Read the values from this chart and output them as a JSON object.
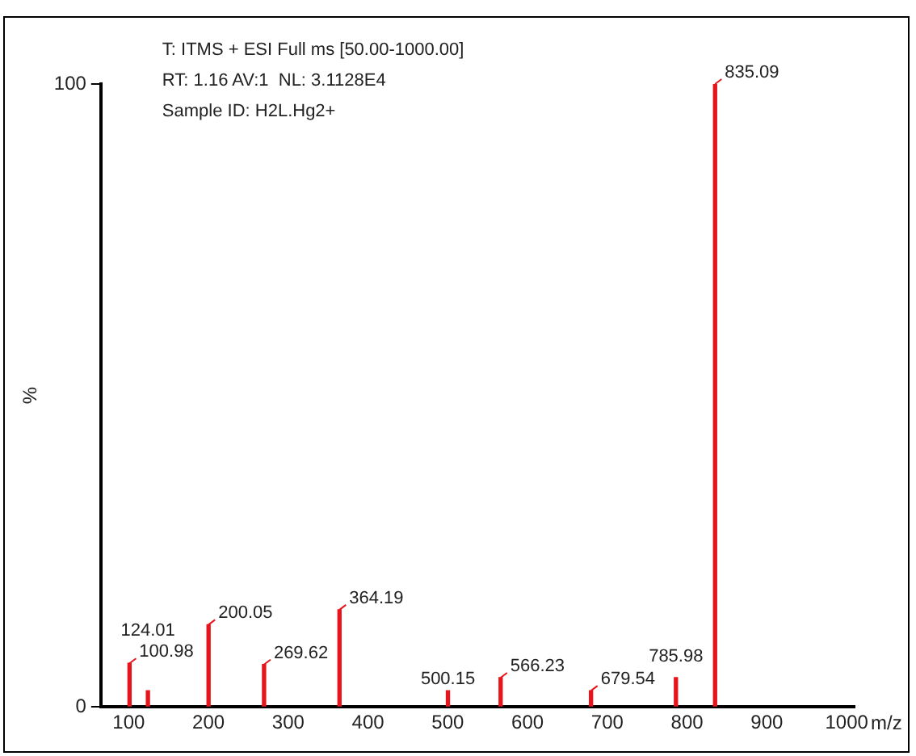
{
  "chart_data": {
    "type": "bar",
    "xlabel": "m/z",
    "ylabel": "%",
    "annotations": [
      "T: ITMS + ESI Full ms [50.00-1000.00]",
      "RT: 1.16 AV:1  NL: 3.1128E4",
      "Sample ID: H2L.Hg2+",
      {
        "text": "100.98",
        "x": 100.98,
        "y": 7
      },
      {
        "text": "124.01",
        "x": 124.01,
        "y": 2.6
      },
      {
        "text": "200.05",
        "x": 200.05,
        "y": 13.2
      },
      {
        "text": "269.62",
        "x": 269.62,
        "y": 6.8
      },
      {
        "text": "364.19",
        "x": 364.19,
        "y": 15.6
      },
      {
        "text": "500.15",
        "x": 500.15,
        "y": 2.6
      },
      {
        "text": "566.23",
        "x": 566.23,
        "y": 4.7
      },
      {
        "text": "679.54",
        "x": 679.54,
        "y": 2.6
      },
      {
        "text": "785.98",
        "x": 785.98,
        "y": 4.7
      },
      {
        "text": "835.09",
        "x": 835.09,
        "y": 100
      }
    ],
    "x": [
      100.98,
      124.01,
      200.05,
      269.62,
      364.19,
      500.15,
      566.23,
      679.54,
      785.98,
      835.09
    ],
    "values": [
      7,
      2.6,
      13.2,
      6.8,
      15.6,
      2.6,
      4.7,
      2.6,
      4.7,
      100
    ],
    "color": "#e8141b",
    "xlim": [
      65,
      1010
    ],
    "xticks": [
      100,
      200,
      300,
      400,
      500,
      600,
      700,
      800,
      900,
      1000
    ],
    "ylim": [
      0,
      100
    ],
    "yticks": [
      0,
      100
    ]
  }
}
